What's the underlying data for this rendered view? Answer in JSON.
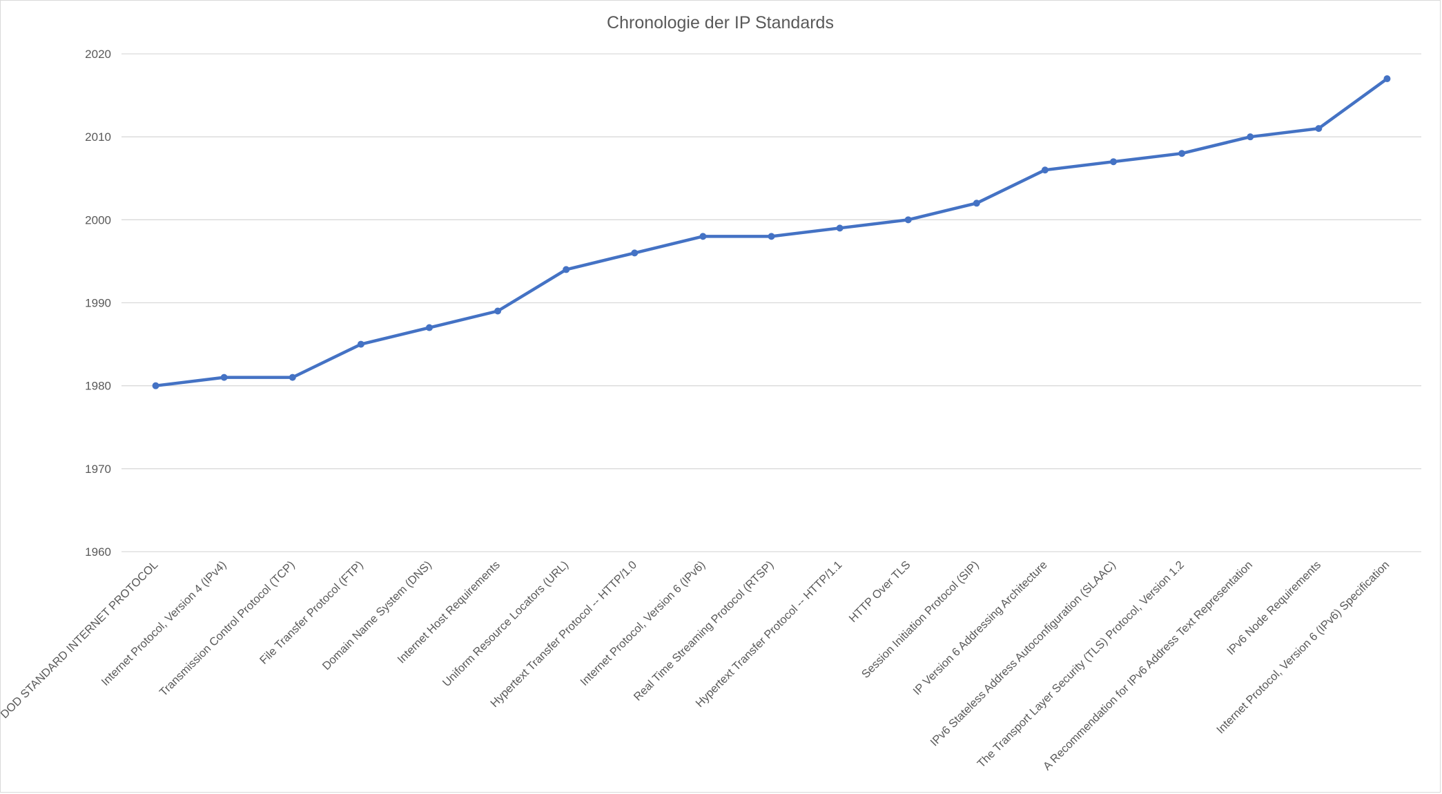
{
  "chart_data": {
    "type": "line",
    "title": "Chronologie der IP Standards",
    "xlabel": "",
    "ylabel": "",
    "ylim": [
      1960,
      2020
    ],
    "yticks": [
      1960,
      1970,
      1980,
      1990,
      2000,
      2010,
      2020
    ],
    "grid": true,
    "legend": "none",
    "color": "#4472c4",
    "categories": [
      "DOD STANDARD INTERNET PROTOCOL",
      "Internet Protocol, Version 4 (IPv4)",
      "Transmission Control Protocol (TCP)",
      "File Transfer Protocol (FTP)",
      "Domain Name System (DNS)",
      "Internet Host Requirements",
      "Uniform Resource Locators (URL)",
      "Hypertext Transfer Protocol -- HTTP/1.0",
      "Internet Protocol, Version 6 (IPv6)",
      "Real Time Streaming Protocol (RTSP)",
      "Hypertext Transfer Protocol -- HTTP/1.1",
      "HTTP Over TLS",
      "Session Initiation Protocol (SIP)",
      "IP Version 6 Addressing Architecture",
      "IPv6 Stateless Address Autoconfiguration (SLAAC)",
      "The Transport Layer Security (TLS) Protocol, Version 1.2",
      "A Recommendation for IPv6 Address Text Representation",
      "IPv6 Node Requirements",
      "Internet Protocol, Version 6 (IPv6) Specification"
    ],
    "series": [
      {
        "values": [
          1980,
          1981,
          1981,
          1985,
          1987,
          1989,
          1994,
          1996,
          1998,
          1998,
          1999,
          2000,
          2002,
          2006,
          2007,
          2008,
          2010,
          2011,
          2017
        ]
      }
    ]
  }
}
